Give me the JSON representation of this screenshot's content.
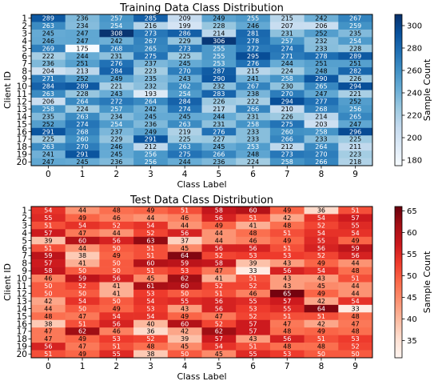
{
  "chart_data": [
    {
      "type": "heatmap",
      "title": "Training Data Class Distribution",
      "xlabel": "Class Label",
      "ylabel": "Client ID",
      "colorbar_label": "Sample Count",
      "colormap": "Blues",
      "vmin": 175,
      "vmax": 310,
      "colorbar_ticks": [
        180,
        200,
        220,
        240,
        260,
        280,
        300
      ],
      "x_categories": [
        "0",
        "1",
        "2",
        "3",
        "4",
        "5",
        "6",
        "7",
        "8",
        "9"
      ],
      "y_categories": [
        "1",
        "2",
        "3",
        "4",
        "5",
        "6",
        "7",
        "8",
        "9",
        "10",
        "11",
        "12",
        "13",
        "14",
        "15",
        "16",
        "17",
        "18",
        "19",
        "20"
      ],
      "values": [
        [
          289,
          236,
          257,
          285,
          209,
          249,
          255,
          215,
          242,
          267
        ],
        [
          263,
          234,
          254,
          216,
          199,
          228,
          246,
          207,
          206,
          259
        ],
        [
          245,
          247,
          308,
          273,
          286,
          214,
          281,
          231,
          252,
          235
        ],
        [
          246,
          247,
          242,
          267,
          229,
          306,
          278,
          257,
          232,
          254
        ],
        [
          269,
          175,
          268,
          265,
          273,
          255,
          272,
          274,
          233,
          228
        ],
        [
          222,
          244,
          231,
          275,
          225,
          255,
          295,
          271,
          278,
          289
        ],
        [
          236,
          251,
          276,
          237,
          245,
          253,
          276,
          244,
          251,
          251
        ],
        [
          204,
          213,
          284,
          223,
          270,
          287,
          215,
          224,
          248,
          282
        ],
        [
          271,
          252,
          249,
          235,
          243,
          290,
          241,
          258,
          290,
          226
        ],
        [
          284,
          289,
          221,
          232,
          262,
          232,
          267,
          230,
          265,
          294
        ],
        [
          263,
          228,
          243,
          193,
          254,
          283,
          238,
          270,
          247,
          221
        ],
        [
          206,
          264,
          272,
          264,
          284,
          226,
          222,
          294,
          277,
          252
        ],
        [
          258,
          224,
          257,
          242,
          274,
          217,
          266,
          210,
          268,
          256
        ],
        [
          235,
          263,
          234,
          245,
          245,
          244,
          231,
          226,
          214,
          265
        ],
        [
          252,
          274,
          254,
          236,
          263,
          231,
          258,
          275,
          203,
          247
        ],
        [
          291,
          268,
          237,
          249,
          219,
          276,
          233,
          260,
          258,
          296
        ],
        [
          225,
          260,
          229,
          291,
          225,
          227,
          233,
          266,
          233,
          225
        ],
        [
          263,
          270,
          246,
          212,
          263,
          245,
          253,
          212,
          264,
          211
        ],
        [
          241,
          291,
          245,
          256,
          275,
          266,
          248,
          273,
          270,
          223
        ],
        [
          247,
          245,
          236,
          256,
          244,
          236,
          224,
          258,
          266,
          218
        ]
      ]
    },
    {
      "type": "heatmap",
      "title": "Test Data Class Distribution",
      "xlabel": "Class Label",
      "ylabel": "Client ID",
      "colorbar_label": "Sample Count",
      "colormap": "Reds",
      "vmin": 31,
      "vmax": 66,
      "colorbar_ticks": [
        35,
        40,
        45,
        50,
        55,
        60,
        65
      ],
      "x_categories": [
        "0",
        "1",
        "2",
        "3",
        "4",
        "5",
        "6",
        "7",
        "8",
        "9"
      ],
      "y_categories": [
        "1",
        "2",
        "3",
        "4",
        "5",
        "6",
        "7",
        "8",
        "9",
        "10",
        "11",
        "12",
        "13",
        "14",
        "15",
        "16",
        "17",
        "18",
        "19",
        "20"
      ],
      "values": [
        [
          54,
          44,
          48,
          49,
          51,
          58,
          60,
          49,
          36,
          51
        ],
        [
          55,
          49,
          46,
          44,
          46,
          56,
          51,
          42,
          54,
          57
        ],
        [
          51,
          54,
          52,
          54,
          44,
          49,
          41,
          48,
          52,
          55
        ],
        [
          57,
          47,
          44,
          52,
          56,
          44,
          48,
          51,
          54,
          54
        ],
        [
          39,
          60,
          56,
          63,
          37,
          44,
          46,
          49,
          55,
          49
        ],
        [
          51,
          44,
          50,
          51,
          45,
          56,
          56,
          51,
          56,
          59
        ],
        [
          59,
          38,
          49,
          51,
          64,
          52,
          53,
          53,
          52,
          56
        ],
        [
          57,
          41,
          50,
          60,
          59,
          58,
          39,
          43,
          49,
          44
        ],
        [
          58,
          50,
          50,
          51,
          53,
          47,
          33,
          56,
          54,
          48
        ],
        [
          46,
          59,
          56,
          45,
          62,
          41,
          51,
          43,
          43,
          51
        ],
        [
          50,
          52,
          41,
          61,
          60,
          52,
          52,
          43,
          45,
          44
        ],
        [
          50,
          50,
          41,
          53,
          50,
          51,
          46,
          65,
          49,
          44
        ],
        [
          42,
          54,
          50,
          54,
          55,
          56,
          55,
          57,
          42,
          54
        ],
        [
          44,
          50,
          49,
          53,
          43,
          56,
          53,
          55,
          64,
          33
        ],
        [
          48,
          47,
          54,
          54,
          49,
          47,
          52,
          51,
          51,
          48
        ],
        [
          38,
          51,
          56,
          40,
          60,
          52,
          57,
          47,
          42,
          47
        ],
        [
          47,
          62,
          46,
          36,
          42,
          62,
          57,
          48,
          49,
          48
        ],
        [
          47,
          49,
          53,
          52,
          39,
          57,
          43,
          56,
          51,
          53
        ],
        [
          56,
          47,
          51,
          48,
          45,
          54,
          51,
          48,
          48,
          52
        ],
        [
          51,
          49,
          55,
          38,
          50,
          45,
          55,
          53,
          50,
          50
        ]
      ]
    }
  ]
}
